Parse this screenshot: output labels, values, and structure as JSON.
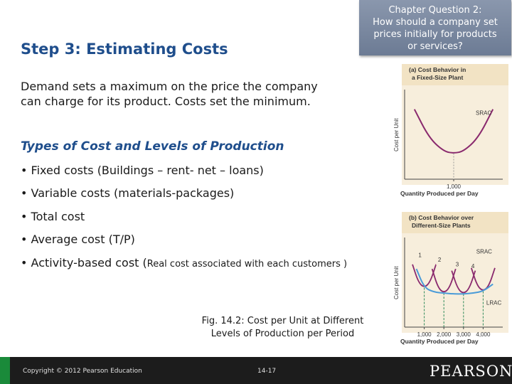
{
  "chapter_question": {
    "lines": [
      "Chapter Question 2:",
      "How should a company set",
      "prices initially for products",
      "or services?"
    ]
  },
  "title": "Step 3: Estimating Costs",
  "intro": {
    "line1": "Demand sets a maximum on the price the company",
    "line2": "can charge for its product. Costs set the minimum."
  },
  "types_heading": "Types of Cost and Levels of Production",
  "bullets": {
    "fixed": "• Fixed costs  (Buildings – rent- net – loans)",
    "variable": "• Variable costs (materials-packages)",
    "total": "• Total cost",
    "average": "• Average cost (T/P)",
    "activity_main": "• Activity-based cost (",
    "activity_note": "Real cost associated with each customers )"
  },
  "figure_caption": {
    "line1": "Fig. 14.2: Cost per Unit at Different",
    "line2": "Levels of Production per Period"
  },
  "chart_data": [
    {
      "type": "line",
      "title": "(a) Cost Behavior in a Fixed-Size Plant",
      "title_line1": "(a) Cost Behavior in",
      "title_line2": "a Fixed-Size Plant",
      "xlabel": "Quantity Produced per Day",
      "ylabel": "Cost per Unit",
      "x_ticks": [
        "1,000"
      ],
      "xlim": [
        0,
        2000
      ],
      "ylim": [
        0,
        10
      ],
      "series": [
        {
          "name": "SRAC",
          "x": [
            200,
            500,
            800,
            1000,
            1200,
            1500,
            1800
          ],
          "y": [
            7.8,
            4.6,
            3.1,
            2.9,
            3.1,
            4.6,
            7.8
          ]
        }
      ],
      "grid": false,
      "background": "#f2e3c4",
      "curve_color": "#8a2a6e"
    },
    {
      "type": "line",
      "title": "(b) Cost Behavior over Different-Size Plants",
      "title_line1": "(b) Cost Behavior over",
      "title_line2": "Different-Size Plants",
      "xlabel": "Quantity Produced per Day",
      "ylabel": "Cost per Unit",
      "x_ticks": [
        "1,000",
        "2,000",
        "3,000",
        "4,000"
      ],
      "xlim": [
        0,
        5000
      ],
      "ylim": [
        0,
        10
      ],
      "plant_labels": [
        "1",
        "2",
        "3",
        "4"
      ],
      "srac_label": "SRAC",
      "lrac_label": "LRAC",
      "series": [
        {
          "x": [
            400,
            700,
            1000,
            1300,
            1600
          ],
          "y": [
            7.0,
            5.0,
            4.4,
            5.0,
            7.0
          ]
        },
        {
          "x": [
            1400,
            1700,
            2000,
            2300,
            2600
          ],
          "y": [
            6.5,
            4.4,
            3.8,
            4.4,
            6.5
          ]
        },
        {
          "x": [
            2400,
            2700,
            3000,
            3300,
            3600
          ],
          "y": [
            6.3,
            4.3,
            3.7,
            4.3,
            6.3
          ]
        },
        {
          "x": [
            3400,
            3700,
            4000,
            4300,
            4600
          ],
          "y": [
            6.6,
            4.6,
            4.0,
            4.6,
            6.6
          ]
        },
        {
          "x": [
            600,
            1000,
            1500,
            2000,
            2500,
            3000,
            3500,
            4000,
            4500
          ],
          "y": [
            6.5,
            4.4,
            3.9,
            3.8,
            3.7,
            3.7,
            3.8,
            4.0,
            4.8
          ]
        }
      ],
      "grid": false,
      "background": "#f2e3c4",
      "curve_color": "#8a2a6e",
      "lrac_color": "#4a9bd8",
      "dash_color": "#2f8a5a"
    }
  ],
  "footer": {
    "copyright": "Copyright © 2012 Pearson Education",
    "page": "14-17",
    "logo": "PEARSON"
  },
  "colors": {
    "title_blue": "#1f4e8c",
    "chapter_box": "#7a889f",
    "footer_bg": "#1c1c1c",
    "footer_accent": "#1a8a3a"
  }
}
